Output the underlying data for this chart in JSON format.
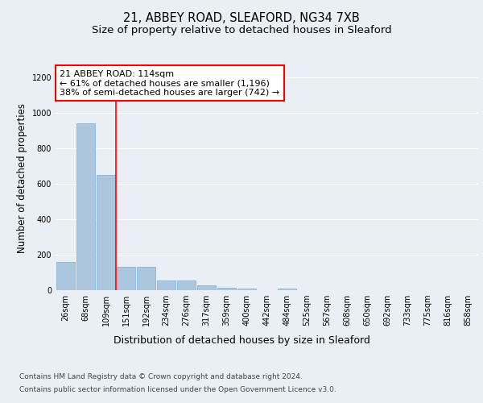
{
  "title1": "21, ABBEY ROAD, SLEAFORD, NG34 7XB",
  "title2": "Size of property relative to detached houses in Sleaford",
  "xlabel": "Distribution of detached houses by size in Sleaford",
  "ylabel": "Number of detached properties",
  "footer1": "Contains HM Land Registry data © Crown copyright and database right 2024.",
  "footer2": "Contains public sector information licensed under the Open Government Licence v3.0.",
  "annotation_line1": "21 ABBEY ROAD: 114sqm",
  "annotation_line2": "← 61% of detached houses are smaller (1,196)",
  "annotation_line3": "38% of semi-detached houses are larger (742) →",
  "bar_labels": [
    "26sqm",
    "68sqm",
    "109sqm",
    "151sqm",
    "192sqm",
    "234sqm",
    "276sqm",
    "317sqm",
    "359sqm",
    "400sqm",
    "442sqm",
    "484sqm",
    "525sqm",
    "567sqm",
    "608sqm",
    "650sqm",
    "692sqm",
    "733sqm",
    "775sqm",
    "816sqm",
    "858sqm"
  ],
  "bar_values": [
    160,
    940,
    650,
    130,
    130,
    55,
    55,
    28,
    15,
    10,
    0,
    10,
    0,
    0,
    0,
    0,
    0,
    0,
    0,
    0,
    0
  ],
  "bar_color": "#adc6e0",
  "bar_edge_color": "#7bafd4",
  "red_line_x": 2.5,
  "ylim": [
    0,
    1260
  ],
  "yticks": [
    0,
    200,
    400,
    600,
    800,
    1000,
    1200
  ],
  "bg_color": "#eaeff5",
  "plot_bg_color": "#eaeff5",
  "grid_color": "#ffffff",
  "title1_fontsize": 10.5,
  "title2_fontsize": 9.5,
  "xlabel_fontsize": 9,
  "ylabel_fontsize": 8.5,
  "tick_fontsize": 7,
  "annotation_fontsize": 8,
  "footer_fontsize": 6.5
}
